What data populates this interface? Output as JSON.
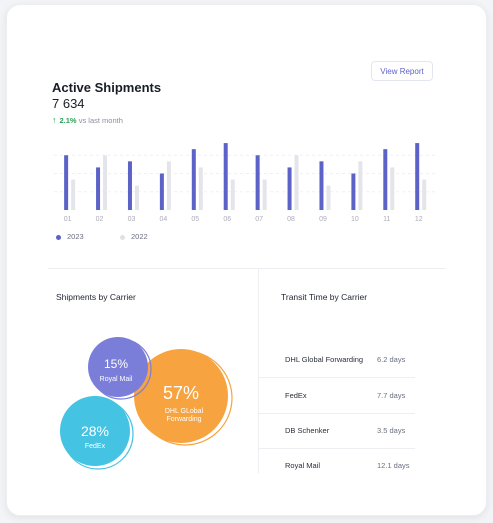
{
  "header": {
    "title": "Active Shipments",
    "total": "7 634",
    "trend_value": "2.1%",
    "trend_text": "vs last month",
    "view_report_label": "View Report"
  },
  "colors": {
    "series_2023": "#5b63c9",
    "series_2022": "#e4e5ea",
    "trend_up": "#2aa35a",
    "bubble_royal_mail": "#7b7ed9",
    "bubble_dhl": "#f6a340",
    "bubble_fedex": "#45c3e2"
  },
  "chart_data": {
    "type": "bar",
    "categories": [
      "01",
      "02",
      "03",
      "04",
      "05",
      "06",
      "07",
      "08",
      "09",
      "10",
      "11",
      "12"
    ],
    "series": [
      {
        "name": "2023",
        "values": [
          9,
          7,
          8,
          6,
          10,
          11,
          9,
          7,
          8,
          6,
          10,
          11
        ]
      },
      {
        "name": "2022",
        "values": [
          5,
          9,
          4,
          8,
          7,
          5,
          5,
          9,
          4,
          8,
          7,
          5
        ]
      }
    ],
    "ylim": [
      0,
      12
    ],
    "grid": true,
    "legend_placement": "bottom-left"
  },
  "legend": [
    {
      "label": "2023"
    },
    {
      "label": "2022"
    }
  ],
  "carriers_section": {
    "title": "Shipments by Carrier",
    "bubbles": [
      {
        "percent": "15%",
        "value": 15,
        "label": "Royal Mail",
        "color": "#7b7ed9"
      },
      {
        "percent": "57%",
        "value": 57,
        "label_lines": [
          "DHL GLobal",
          "Forwarding"
        ],
        "color": "#f6a340"
      },
      {
        "percent": "28%",
        "value": 28,
        "label": "FedEx",
        "color": "#45c3e2"
      }
    ]
  },
  "transit_section": {
    "title": "Transit Time by Carrier",
    "rows": [
      {
        "carrier": "DHL Global Forwarding",
        "days": "6.2 days"
      },
      {
        "carrier": "FedEx",
        "days": "7.7 days"
      },
      {
        "carrier": "DB Schenker",
        "days": "3.5 days"
      },
      {
        "carrier": "Royal Mail",
        "days": "12.1 days"
      }
    ]
  }
}
